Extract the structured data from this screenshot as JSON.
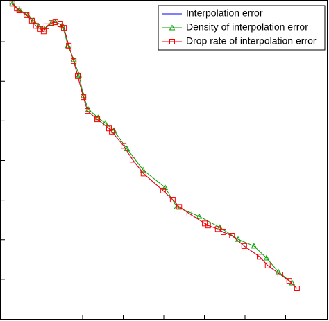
{
  "chart_data": {
    "type": "line",
    "xlim": [
      0,
      8
    ],
    "ylim": [
      -8,
      0
    ],
    "xticks": [
      1,
      2,
      3,
      4,
      5,
      6,
      7
    ],
    "yticks": [
      -7,
      -6,
      -5,
      -4,
      -3,
      -2,
      -1
    ],
    "legend": "upper right",
    "series": [
      {
        "name": "Interpolation error",
        "color": "#0000ff",
        "marker": "none",
        "x": [
          0.27,
          0.38,
          0.44,
          0.62,
          0.75,
          0.85,
          0.96,
          1.04,
          1.11,
          1.23,
          1.33,
          1.45,
          1.54,
          1.66,
          1.78,
          1.88,
          2.02,
          2.12,
          2.36,
          2.65,
          2.72,
          3.01,
          3.23,
          3.5,
          3.98,
          4.22,
          4.38,
          4.63,
          5.01,
          5.09,
          5.33,
          5.47,
          5.68,
          5.98,
          6.36,
          6.56,
          6.87,
          7.09,
          7.28
        ],
        "values": [
          -0.04,
          -0.16,
          -0.21,
          -0.33,
          -0.47,
          -0.6,
          -0.68,
          -0.74,
          -0.61,
          -0.53,
          -0.51,
          -0.56,
          -0.65,
          -1.1,
          -1.49,
          -1.87,
          -2.4,
          -2.75,
          -2.96,
          -3.19,
          -3.27,
          -3.63,
          -3.98,
          -4.33,
          -4.76,
          -4.99,
          -5.17,
          -5.34,
          -5.59,
          -5.64,
          -5.73,
          -5.81,
          -5.9,
          -6.16,
          -6.43,
          -6.65,
          -6.88,
          -7.04,
          -7.23
        ]
      },
      {
        "name": "Density of interpolation error",
        "color": "#00a000",
        "marker": "triangle",
        "x": [
          0.27,
          0.44,
          0.65,
          0.79,
          0.92,
          1.06,
          1.23,
          1.33,
          1.5,
          1.64,
          1.78,
          1.91,
          2.02,
          2.14,
          2.38,
          2.56,
          2.77,
          3.09,
          3.49,
          4.03,
          4.32,
          4.87,
          5.38,
          5.83,
          6.22,
          6.53,
          6.82,
          7.16
        ],
        "values": [
          -0.04,
          -0.19,
          -0.33,
          -0.47,
          -0.61,
          -0.68,
          -0.53,
          -0.51,
          -0.58,
          -1.1,
          -1.45,
          -1.84,
          -2.36,
          -2.71,
          -2.92,
          -3.06,
          -3.24,
          -3.7,
          -4.24,
          -4.68,
          -5.17,
          -5.41,
          -5.69,
          -5.99,
          -6.16,
          -6.46,
          -6.81,
          -7.09
        ]
      },
      {
        "name": "Drop rate of interpolation error",
        "color": "#ff0000",
        "marker": "square",
        "x": [
          0.27,
          0.38,
          0.44,
          0.62,
          0.75,
          0.85,
          0.96,
          1.04,
          1.11,
          1.23,
          1.33,
          1.45,
          1.54,
          1.66,
          1.78,
          1.88,
          2.02,
          2.12,
          2.36,
          2.65,
          2.72,
          3.01,
          3.23,
          3.5,
          3.98,
          4.22,
          4.38,
          4.63,
          5.01,
          5.09,
          5.33,
          5.47,
          5.68,
          5.98,
          6.36,
          6.56,
          6.87,
          7.09,
          7.28
        ],
        "values": [
          -0.04,
          -0.16,
          -0.21,
          -0.33,
          -0.47,
          -0.6,
          -0.68,
          -0.74,
          -0.61,
          -0.53,
          -0.51,
          -0.56,
          -0.65,
          -1.1,
          -1.49,
          -1.87,
          -2.4,
          -2.75,
          -2.96,
          -3.19,
          -3.27,
          -3.63,
          -3.98,
          -4.33,
          -4.76,
          -4.99,
          -5.17,
          -5.34,
          -5.59,
          -5.64,
          -5.73,
          -5.81,
          -5.9,
          -6.16,
          -6.43,
          -6.65,
          -6.88,
          -7.04,
          -7.23
        ]
      }
    ]
  }
}
